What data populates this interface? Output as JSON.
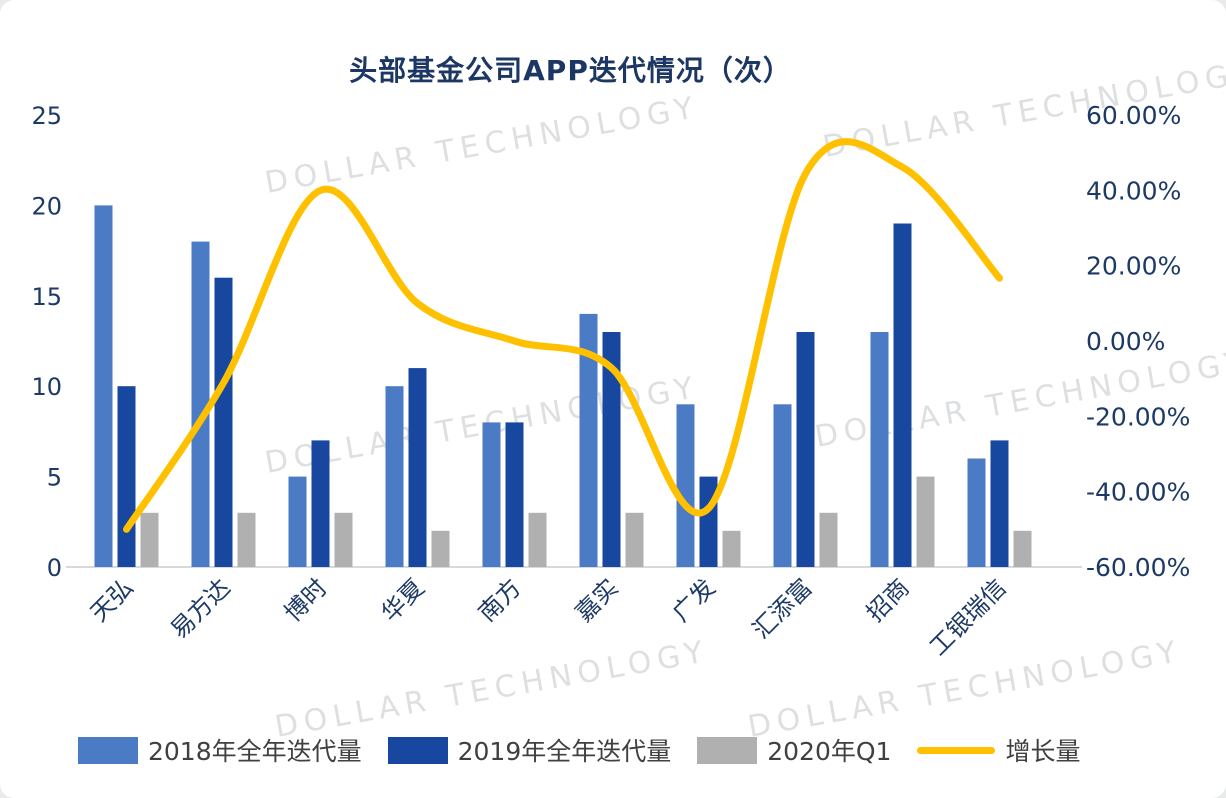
{
  "chart_data": {
    "type": "bar",
    "subtype": "combo-bar-line",
    "title": "头部基金公司APP迭代情况（次）",
    "categories": [
      "天弘",
      "易方达",
      "博时",
      "华夏",
      "南方",
      "嘉实",
      "广发",
      "汇添富",
      "招商",
      "工银瑞信"
    ],
    "bar_series": [
      {
        "name": "2018年全年迭代量",
        "color": "#4b7bc5",
        "values": [
          20,
          18,
          5,
          10,
          8,
          14,
          9,
          9,
          13,
          6
        ]
      },
      {
        "name": "2019年全年迭代量",
        "color": "#17479e",
        "values": [
          10,
          16,
          7,
          11,
          8,
          13,
          5,
          13,
          19,
          7
        ]
      },
      {
        "name": "2020年Q1",
        "color": "#b0b0b0",
        "values": [
          3,
          3,
          3,
          2,
          3,
          3,
          2,
          3,
          5,
          2
        ]
      }
    ],
    "line_series": {
      "name": "增长量",
      "color": "#ffc000",
      "axis": "right",
      "values_pct": [
        -50,
        -11.11,
        40,
        10,
        0,
        -7.14,
        -44.44,
        44.44,
        46.15,
        16.67
      ]
    },
    "left_axis": {
      "min": 0,
      "max": 25,
      "ticks": [
        0,
        5,
        10,
        15,
        20,
        25
      ]
    },
    "right_axis": {
      "min": -60,
      "max": 60,
      "ticks": [
        {
          "value": 60,
          "label": "60.00%"
        },
        {
          "value": 40,
          "label": "40.00%"
        },
        {
          "value": 20,
          "label": "20.00%"
        },
        {
          "value": 0,
          "label": "0.00%"
        },
        {
          "value": -20,
          "label": "-20.00%"
        },
        {
          "value": -40,
          "label": "-40.00%"
        },
        {
          "value": -60,
          "label": "-60.00%"
        }
      ]
    },
    "grid": false,
    "legend_position": "bottom",
    "watermark": "DOLLAR TECHNOLOGY"
  }
}
